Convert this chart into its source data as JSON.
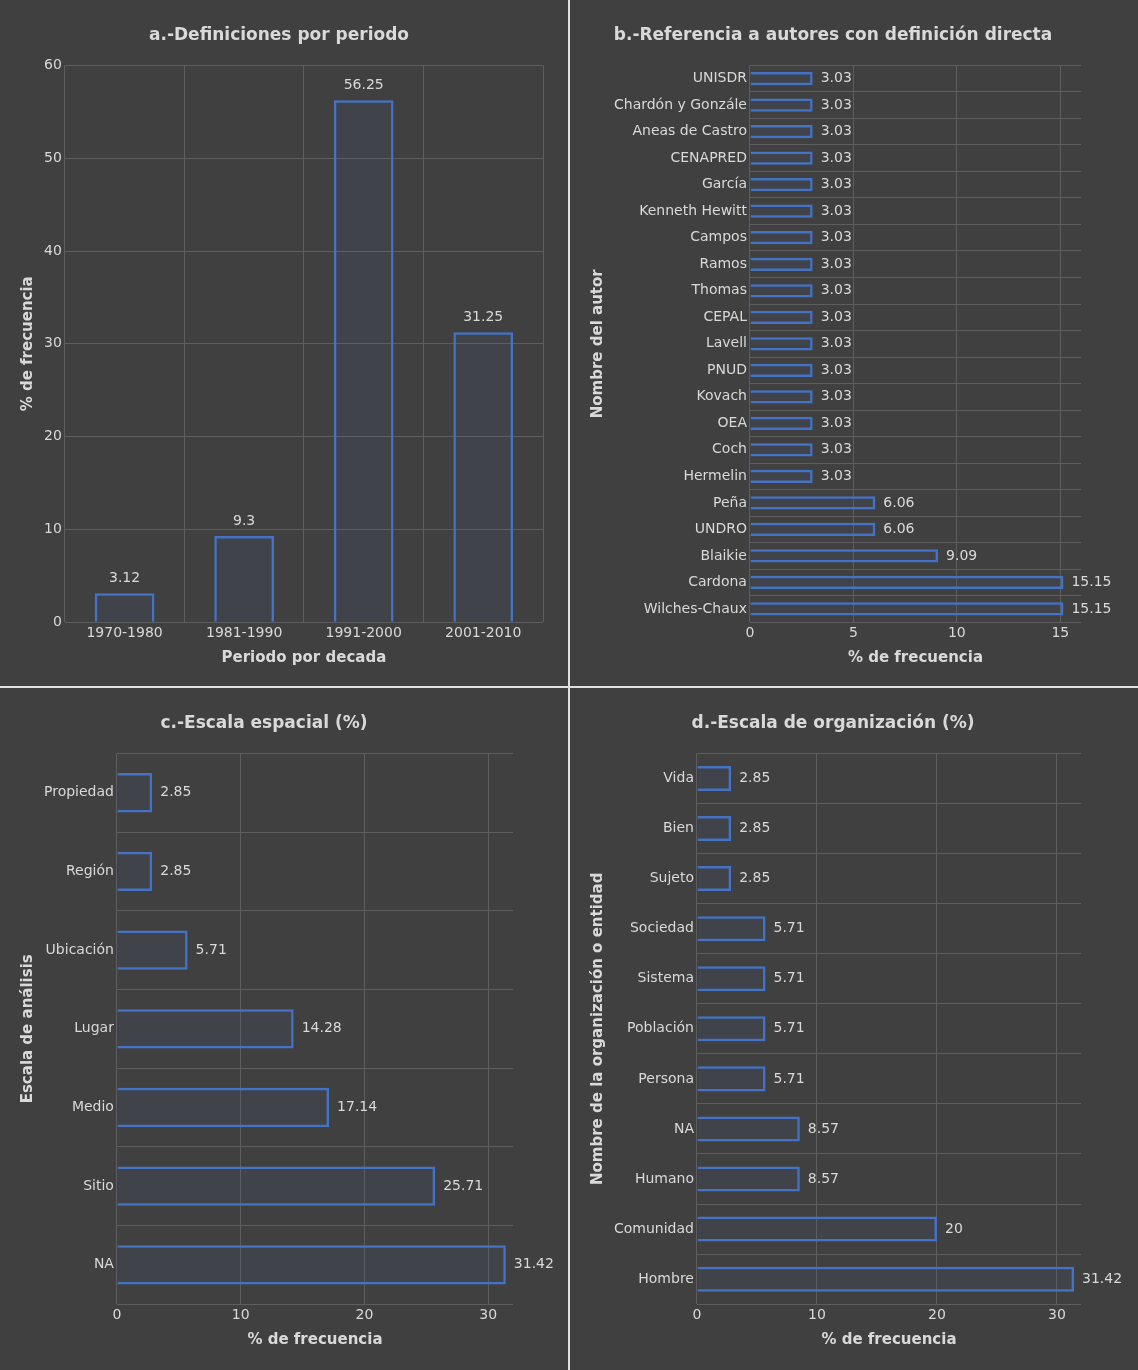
{
  "chart_data": [
    {
      "type": "bar",
      "title": "a.-Definiciones por periodo",
      "xlabel": "Periodo por decada",
      "ylabel": "% de frecuencia",
      "categories": [
        "1970-1980",
        "1981-1990",
        "1991-2000",
        "2001-2010"
      ],
      "values": [
        3.12,
        9.3,
        56.25,
        31.25
      ],
      "color": "#4472c4",
      "ylim": [
        0,
        60
      ],
      "yticks": [
        0,
        10,
        20,
        30,
        40,
        50,
        60
      ],
      "grid": true,
      "data_labels": true
    },
    {
      "type": "bar",
      "orientation": "horizontal",
      "title": "b.-Referencia a autores con definición directa",
      "xlabel": "% de frecuencia",
      "ylabel": "Nombre del autor",
      "categories": [
        "UNISDR",
        "Chardón y Gonzále",
        "Aneas de Castro",
        "CENAPRED",
        "García",
        "Kenneth Hewitt",
        "Campos",
        "Ramos",
        "Thomas",
        "CEPAL",
        "Lavell",
        "PNUD",
        "Kovach",
        "OEA",
        "Coch",
        "Hermelin",
        "Peña",
        "UNDRO",
        "Blaikie",
        "Cardona",
        "Wilches-Chaux"
      ],
      "values": [
        3.03,
        3.03,
        3.03,
        3.03,
        3.03,
        3.03,
        3.03,
        3.03,
        3.03,
        3.03,
        3.03,
        3.03,
        3.03,
        3.03,
        3.03,
        3.03,
        6.06,
        6.06,
        9.09,
        15.15,
        15.15
      ],
      "color": "#4472c4",
      "xlim": [
        0,
        16
      ],
      "xticks": [
        0,
        5,
        10,
        15
      ],
      "grid": true,
      "data_labels": true
    },
    {
      "type": "bar",
      "orientation": "horizontal",
      "title": "c.-Escala espacial (%)",
      "xlabel": "% de frecuencia",
      "ylabel": "Escala de análisis",
      "categories": [
        "Propiedad",
        "Región",
        "Ubicación",
        "Lugar",
        "Medio",
        "Sitio",
        "NA"
      ],
      "values": [
        2.85,
        2.85,
        5.71,
        14.28,
        17.14,
        25.71,
        31.42
      ],
      "color": "#4472c4",
      "xlim": [
        0,
        32
      ],
      "xticks": [
        0,
        10,
        20,
        30
      ],
      "grid": true,
      "data_labels": true
    },
    {
      "type": "bar",
      "orientation": "horizontal",
      "title": "d.-Escala de organización (%)",
      "xlabel": "% de frecuencia",
      "ylabel": "Nombre de la organización o entidad",
      "categories": [
        "Vida",
        "Bien",
        "Sujeto",
        "Sociedad",
        "Sistema",
        "Población",
        "Persona",
        "NA",
        "Humano",
        "Comunidad",
        "Hombre"
      ],
      "values": [
        2.85,
        2.85,
        2.85,
        5.71,
        5.71,
        5.71,
        5.71,
        8.57,
        8.57,
        20,
        31.42
      ],
      "color": "#4472c4",
      "xlim": [
        0,
        32
      ],
      "xticks": [
        0,
        10,
        20,
        30
      ],
      "grid": true,
      "data_labels": true
    }
  ]
}
